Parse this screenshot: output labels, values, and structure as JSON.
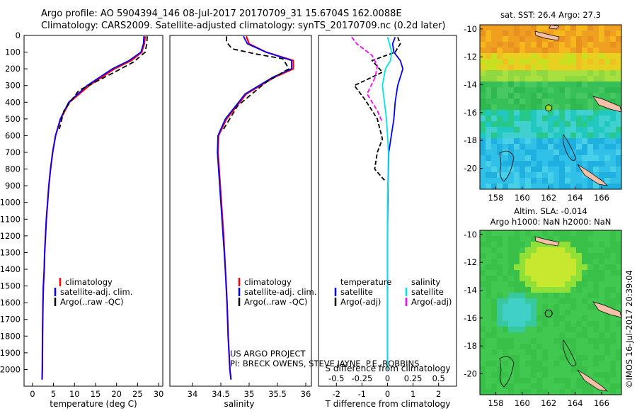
{
  "header": {
    "line1": "Argo profile: AO 5904394_146 08-Jul-2017 20170709_31 15.6704S 162.0088E",
    "line2": "Climatology: CARS2009. Satellite-adjusted climatology: synTS_20170709.nc (0.2d later)"
  },
  "depth_ticks": [
    "0",
    "100",
    "200",
    "300",
    "400",
    "500",
    "600",
    "700",
    "800",
    "900",
    "1000",
    "1100",
    "1200",
    "1300",
    "1400",
    "1500",
    "1600",
    "1700",
    "1800",
    "1900",
    "2000"
  ],
  "colors": {
    "climatology": "#ff0000",
    "satellite": "#0000ff",
    "argo": "#000000",
    "sal_satellite": "#00e5e5",
    "sal_argo": "#ff00ff"
  },
  "chart_data": [
    {
      "type": "line",
      "name": "temperature",
      "xlabel": "temperature (deg C)",
      "xlim": [
        -2,
        31
      ],
      "ylim": [
        2100,
        0
      ],
      "xticks": [
        "0",
        "5",
        "10",
        "15",
        "20",
        "25",
        "30"
      ],
      "legend": [
        "climatology",
        "satellite-adj. clim.",
        "Argo(..raw -QC)"
      ],
      "series": [
        {
          "name": "climatology",
          "x": [
            26.8,
            26.6,
            26.0,
            23.5,
            19.5,
            13.5,
            8.8,
            6.7,
            5.5,
            4.8,
            4.3,
            3.9,
            3.6,
            3.3,
            3.1,
            2.9,
            2.8,
            2.6,
            2.5,
            2.4,
            2.35,
            2.3
          ],
          "y": [
            5,
            50,
            100,
            150,
            200,
            300,
            400,
            500,
            600,
            700,
            800,
            900,
            1000,
            1100,
            1200,
            1300,
            1400,
            1500,
            1600,
            1800,
            2000,
            2060
          ]
        },
        {
          "name": "satellite-adj. clim.",
          "x": [
            26.5,
            26.4,
            25.8,
            23.0,
            19.0,
            13.0,
            8.6,
            6.6,
            5.5,
            4.8,
            4.3,
            3.9,
            3.6,
            3.3,
            3.1,
            2.9,
            2.8,
            2.6,
            2.5,
            2.4,
            2.35,
            2.3
          ],
          "y": [
            5,
            50,
            100,
            150,
            200,
            300,
            400,
            500,
            600,
            700,
            800,
            900,
            1000,
            1100,
            1200,
            1300,
            1400,
            1500,
            1600,
            1800,
            2000,
            2060
          ]
        },
        {
          "name": "Argo(..raw -QC)",
          "x": [
            27.3,
            27.2,
            26.8,
            24.0,
            19.5,
            11.0,
            7.5,
            6.4
          ],
          "y": [
            5,
            50,
            100,
            160,
            220,
            330,
            450,
            560
          ]
        }
      ]
    },
    {
      "type": "line",
      "name": "salinity",
      "xlabel": "salinity",
      "xlim": [
        33.6,
        36.1
      ],
      "ylim": [
        2100,
        0
      ],
      "xticks": [
        "34",
        "34.5",
        "35",
        "35.5",
        "36"
      ],
      "legend": [
        "climatology",
        "satellite-adj. clim.",
        "Argo(..raw -QC)"
      ],
      "series": [
        {
          "name": "climatology",
          "x": [
            34.95,
            35.0,
            35.3,
            35.78,
            35.78,
            35.45,
            34.95,
            34.6,
            34.46,
            34.45,
            34.47,
            34.51,
            34.55,
            34.58,
            34.61,
            34.63,
            34.66,
            34.67,
            34.68
          ],
          "y": [
            5,
            50,
            100,
            150,
            200,
            250,
            350,
            500,
            600,
            700,
            800,
            1000,
            1200,
            1400,
            1600,
            1800,
            2000,
            2030,
            2060
          ]
        },
        {
          "name": "satellite-adj. clim.",
          "x": [
            34.9,
            34.97,
            35.3,
            35.75,
            35.75,
            35.42,
            34.93,
            34.58,
            34.45,
            34.44,
            34.46,
            34.5,
            34.54,
            34.58,
            34.61,
            34.63,
            34.66,
            34.67,
            34.68
          ],
          "y": [
            5,
            50,
            100,
            150,
            200,
            250,
            350,
            500,
            600,
            700,
            800,
            1000,
            1200,
            1400,
            1600,
            1800,
            2000,
            2030,
            2060
          ]
        },
        {
          "name": "Argo(..raw -QC)",
          "x": [
            34.6,
            34.6,
            34.7,
            35.1,
            35.6,
            35.7,
            35.3,
            34.8,
            34.55
          ],
          "y": [
            5,
            40,
            80,
            110,
            140,
            200,
            280,
            420,
            560
          ]
        }
      ]
    },
    {
      "type": "line",
      "name": "difference",
      "xlabel": "T difference from climatology",
      "xlabel_top": "S difference from climatology",
      "xlim": [
        -2.7,
        2.7
      ],
      "ylim": [
        2100,
        0
      ],
      "xticks": [
        "-2",
        "-1",
        "0",
        "1",
        "2"
      ],
      "xticks_top": [
        "-0.5",
        "-0.25",
        "0",
        "0.25",
        "0.5"
      ],
      "legend_temperature_title": "temperature",
      "legend_salinity_title": "salinity",
      "legend_temperature": [
        "satellite",
        "Argo(-adj)"
      ],
      "legend_salinity": [
        "satellite",
        "Argo(-adj)"
      ],
      "series": [
        {
          "name": "T satellite",
          "x": [
            0.3,
            0.2,
            0.25,
            0.5,
            0.6,
            0.4,
            0.3,
            0.25,
            0.15,
            0.05,
            0.02,
            0.0,
            0.0,
            0.0
          ],
          "y": [
            10,
            50,
            100,
            150,
            200,
            300,
            400,
            500,
            600,
            700,
            900,
            1200,
            1600,
            2000
          ]
        },
        {
          "name": "T Argo(-adj)",
          "x": [
            0.4,
            0.5,
            0.3,
            -0.6,
            -0.2,
            -1.3,
            -0.9,
            -0.6,
            -0.4,
            -0.3,
            -0.2,
            -0.4,
            -0.5,
            -0.1
          ],
          "y": [
            10,
            50,
            100,
            150,
            220,
            300,
            380,
            450,
            500,
            560,
            620,
            700,
            800,
            870
          ]
        },
        {
          "name": "S satellite",
          "x": [
            0.0,
            0.02,
            0.04,
            0.03,
            -0.02,
            -0.05,
            -0.03,
            -0.01,
            0.01,
            0.0,
            0.0
          ],
          "y": [
            10,
            50,
            100,
            150,
            200,
            300,
            400,
            500,
            700,
            1000,
            2000
          ]
        },
        {
          "name": "S Argo(-adj)",
          "x": [
            -0.35,
            -0.3,
            -0.15,
            -0.1,
            -0.12,
            -0.2,
            -0.1,
            -0.05
          ],
          "y": [
            10,
            50,
            120,
            180,
            250,
            350,
            450,
            520
          ]
        }
      ],
      "annotation": [
        "US ARGO PROJECT",
        "PI: BRECK OWENS, STEVE JAYNE, P.E. ROBBINS"
      ]
    },
    {
      "type": "heatmap",
      "name": "sst map",
      "title": "sat. SST: 26.4  Argo: 27.3",
      "xlim": [
        156.8,
        167.5
      ],
      "ylim": [
        -21.5,
        -9.7
      ],
      "xticks": [
        "158",
        "160",
        "162",
        "164",
        "166"
      ],
      "yticks": [
        "-10",
        "-12",
        "-14",
        "-16",
        "-18",
        "-20"
      ],
      "marker": {
        "x": 162.0,
        "y": -15.67
      }
    },
    {
      "type": "heatmap",
      "name": "sla map",
      "title": "Altim. SLA: -0.014",
      "subtitle": "Argo h1000: NaN  h2000: NaN",
      "xlim": [
        156.8,
        167.5
      ],
      "ylim": [
        -21.5,
        -9.7
      ],
      "xticks": [
        "158",
        "160",
        "162",
        "164",
        "166"
      ],
      "yticks": [
        "-10",
        "-12",
        "-14",
        "-16",
        "-18",
        "-20"
      ],
      "marker": {
        "x": 162.0,
        "y": -15.67
      }
    }
  ],
  "credit": "©IMOS 16-Jul-2017 20:39:04"
}
